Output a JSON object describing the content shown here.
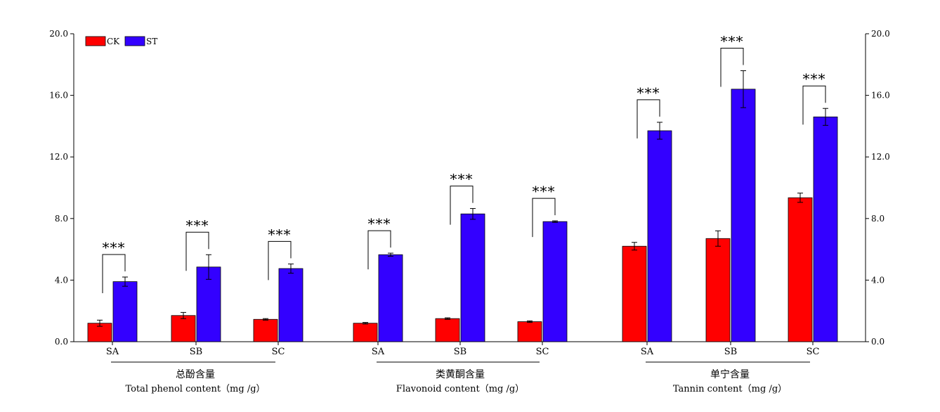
{
  "chart_data": {
    "type": "bar",
    "legend": {
      "placement": "top-left",
      "entries": [
        "CK",
        "ST"
      ]
    },
    "series": [
      {
        "name": "CK",
        "color": "#ff0000"
      },
      {
        "name": "ST",
        "color": "#3300ff"
      }
    ],
    "ylim": [
      0,
      20
    ],
    "yticks": [
      "0.0",
      "4.0",
      "8.0",
      "12.0",
      "16.0",
      "20.0"
    ],
    "right_axis": {
      "ylim": [
        0,
        20
      ],
      "yticks": [
        "0.0",
        "4.0",
        "8.0",
        "12.0",
        "16.0",
        "20.0"
      ]
    },
    "grid": false,
    "groups": [
      {
        "label_zh": "总酚含量",
        "label_en": "Total phenol content（mg /g）",
        "categories": [
          {
            "name": "SA",
            "ck": 1.2,
            "ck_err": 0.2,
            "st": 3.9,
            "st_err": 0.3,
            "sig": "***"
          },
          {
            "name": "SB",
            "ck": 1.7,
            "ck_err": 0.2,
            "st": 4.85,
            "st_err": 0.8,
            "sig": "***"
          },
          {
            "name": "SC",
            "ck": 1.45,
            "ck_err": 0.05,
            "st": 4.75,
            "st_err": 0.3,
            "sig": "***"
          }
        ]
      },
      {
        "label_zh": "类黄酮含量",
        "label_en": "Flavonoid content（mg /g）",
        "categories": [
          {
            "name": "SA",
            "ck": 1.2,
            "ck_err": 0.05,
            "st": 5.65,
            "st_err": 0.1,
            "sig": "***"
          },
          {
            "name": "SB",
            "ck": 1.5,
            "ck_err": 0.05,
            "st": 8.3,
            "st_err": 0.35,
            "sig": "***"
          },
          {
            "name": "SC",
            "ck": 1.3,
            "ck_err": 0.05,
            "st": 7.8,
            "st_err": 0.05,
            "sig": "***"
          }
        ]
      },
      {
        "label_zh": "单宁含量",
        "label_en": "Tannin content（mg /g）",
        "categories": [
          {
            "name": "SA",
            "ck": 6.2,
            "ck_err": 0.25,
            "st": 13.7,
            "st_err": 0.55,
            "sig": "***"
          },
          {
            "name": "SB",
            "ck": 6.7,
            "ck_err": 0.5,
            "st": 16.4,
            "st_err": 1.2,
            "sig": "***"
          },
          {
            "name": "SC",
            "ck": 9.35,
            "ck_err": 0.3,
            "st": 14.6,
            "st_err": 0.55,
            "sig": "***"
          }
        ]
      }
    ]
  }
}
